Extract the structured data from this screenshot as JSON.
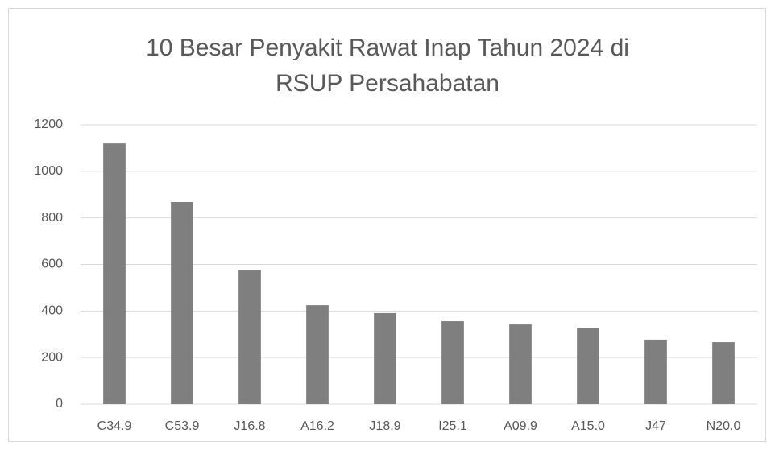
{
  "chart_data": {
    "type": "bar",
    "title": "10 Besar Penyakit Rawat Inap Tahun 2024 di RSUP Persahabatan",
    "categories": [
      "C34.9",
      "C53.9",
      "J16.8",
      "A16.2",
      "J18.9",
      "I25.1",
      "A09.9",
      "A15.0",
      "J47",
      "N20.0"
    ],
    "values": [
      1120,
      868,
      574,
      425,
      391,
      356,
      342,
      328,
      277,
      266
    ],
    "color": "#7f7f7f",
    "ylim": [
      0,
      1200
    ],
    "yticks": [
      0,
      200,
      400,
      600,
      800,
      1000,
      1200
    ],
    "grid": true
  }
}
